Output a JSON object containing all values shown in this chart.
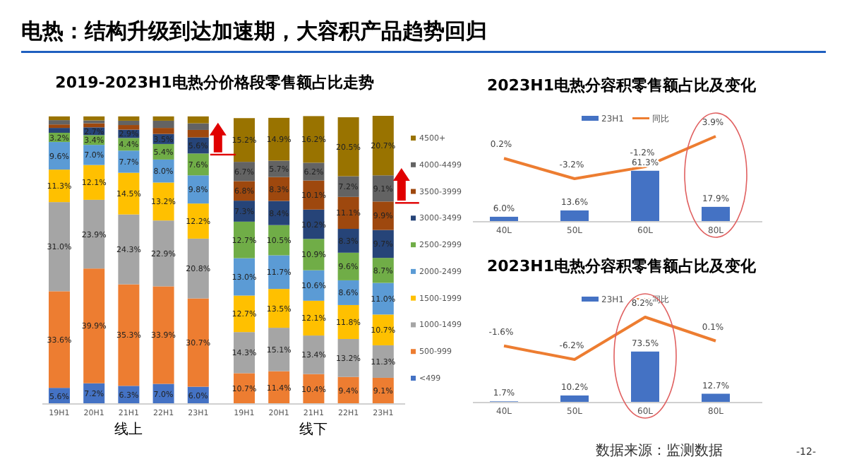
{
  "chart_data": [
    {
      "type": "bar",
      "stacked": true,
      "legend": "right",
      "title": "2019-2023H1电热分价格段零售额占比走势",
      "annotations": [
        "电热：结构升级到达加速期，大容积产品趋势回归",
        "线上",
        "线下"
      ],
      "categories": [
        "19H1",
        "20H1",
        "21H1",
        "22H1",
        "23H1",
        "19H1",
        "20H1",
        "21H1",
        "22H1",
        "23H1"
      ],
      "series": [
        {
          "name": "<499",
          "color": "#4472c4",
          "values": [
            5.6,
            7.2,
            6.3,
            7.0,
            6.0,
            null,
            null,
            null,
            null,
            null
          ],
          "value_labels": [
            "5.6%",
            "7.2%",
            "6.3%",
            "7.0%",
            "6.0%",
            null,
            null,
            null,
            null,
            null
          ]
        },
        {
          "name": "500-999",
          "color": "#ed7d31",
          "values": [
            33.6,
            39.9,
            35.3,
            33.9,
            30.7,
            10.7,
            11.4,
            10.4,
            9.4,
            9.1
          ],
          "value_labels": [
            "33.6%",
            "39.9%",
            "35.3%",
            "33.9%",
            "30.7%",
            "10.7%",
            "11.4%",
            "10.4%",
            "9.4%",
            "9.1%"
          ]
        },
        {
          "name": "1000-1499",
          "color": "#a5a5a5",
          "values": [
            31.0,
            23.9,
            24.3,
            22.9,
            20.8,
            14.3,
            15.1,
            13.4,
            13.2,
            11.3
          ],
          "value_labels": [
            "31.0%",
            "23.9%",
            "24.3%",
            "22.9%",
            "20.8%",
            "14.3%",
            "15.1%",
            "13.4%",
            "13.2%",
            "11.3%"
          ]
        },
        {
          "name": "1500-1999",
          "color": "#ffc000",
          "values": [
            11.3,
            12.1,
            14.5,
            13.2,
            12.2,
            12.7,
            13.5,
            12.1,
            11.8,
            10.7
          ],
          "value_labels": [
            "11.3%",
            "12.1%",
            "14.5%",
            "13.2%",
            "12.2%",
            "12.7%",
            "13.5%",
            "12.1%",
            "11.8%",
            "10.7%"
          ]
        },
        {
          "name": "2000-2499",
          "color": "#5b9bd5",
          "values": [
            9.6,
            7.0,
            7.7,
            8.0,
            9.8,
            13.0,
            11.7,
            10.6,
            8.6,
            11.0
          ],
          "value_labels": [
            "9.6%",
            "7.0%",
            "7.7%",
            "8.0%",
            "9.8%",
            "13.0%",
            "11.7%",
            "10.6%",
            "8.6%",
            "11.0%"
          ]
        },
        {
          "name": "2500-2999",
          "color": "#70ad47",
          "values": [
            3.2,
            3.4,
            4.4,
            5.4,
            7.6,
            12.7,
            10.5,
            10.9,
            9.6,
            8.7
          ],
          "value_labels": [
            "3.2%",
            "3.4%",
            "4.4%",
            "5.4%",
            "7.6%",
            "12.7%",
            "10.5%",
            "10.9%",
            "9.6%",
            "8.7%"
          ]
        },
        {
          "name": "3000-3499",
          "color": "#264478",
          "values": [
            1.7,
            2.7,
            2.9,
            3.5,
            5.6,
            7.3,
            8.4,
            10.2,
            8.3,
            9.7
          ],
          "value_labels": [
            null,
            "2.7%",
            "2.9%",
            "3.5%",
            "5.6%",
            "7.3%",
            "8.4%",
            "10.2%",
            "8.3%",
            "9.7%"
          ]
        },
        {
          "name": "3500-3999",
          "color": "#9e480e",
          "values": [
            1.2,
            1.4,
            1.6,
            2.1,
            2.6,
            6.8,
            8.3,
            10.1,
            11.1,
            9.9
          ],
          "value_labels": [
            null,
            null,
            null,
            null,
            null,
            "6.8%",
            "8.3%",
            "10.1%",
            "11.1%",
            "9.9%"
          ]
        },
        {
          "name": "4000-4499",
          "color": "#636363",
          "values": [
            1.5,
            1.0,
            1.5,
            2.5,
            2.3,
            6.7,
            5.7,
            6.2,
            7.2,
            9.1
          ],
          "value_labels": [
            null,
            null,
            null,
            null,
            null,
            "6.7%",
            "5.7%",
            "6.2%",
            "7.2%",
            "9.1%"
          ]
        },
        {
          "name": "4500+",
          "color": "#997300",
          "values": [
            1.3,
            1.4,
            1.5,
            1.5,
            2.4,
            15.2,
            14.9,
            16.2,
            20.5,
            20.7
          ],
          "value_labels": [
            null,
            null,
            null,
            null,
            null,
            "15.2%",
            "14.9%",
            "16.2%",
            "20.5%",
            "20.7%"
          ]
        }
      ]
    },
    {
      "type": "bar",
      "legend": "top",
      "title": "2023H1电热分容积零售额占比及变化",
      "categories": [
        "40L",
        "50L",
        "60L",
        "80L"
      ],
      "series": [
        {
          "name": "23H1",
          "color": "#4472c4",
          "values": [
            6.0,
            13.6,
            61.3,
            17.9
          ],
          "value_labels": [
            "6.0%",
            "13.6%",
            "61.3%",
            "17.9%"
          ]
        },
        {
          "name": "同比",
          "type": "line",
          "axis": "y2",
          "color": "#ed7d31",
          "values": [
            0.2,
            -3.2,
            -1.2,
            3.9
          ],
          "value_labels": [
            "0.2%",
            "-3.2%",
            "-1.2%",
            "3.9%"
          ]
        }
      ]
    },
    {
      "type": "bar",
      "legend": "top",
      "title": "2023H1电热分容积零售额占比及变化",
      "categories": [
        "40L",
        "50L",
        "60L",
        "80L"
      ],
      "annotations": [
        "数据来源：监测数据",
        "-12-"
      ],
      "series": [
        {
          "name": "23H1",
          "color": "#4472c4",
          "values": [
            1.7,
            10.2,
            73.5,
            12.7
          ],
          "value_labels": [
            "1.7%",
            "10.2%",
            "73.5%",
            "12.7%"
          ]
        },
        {
          "name": "同比",
          "type": "line",
          "axis": "y2",
          "color": "#ed7d31",
          "values": [
            -1.6,
            -6.2,
            8.2,
            0.1
          ],
          "value_labels": [
            "-1.6%",
            "-6.2%",
            "8.2%",
            "0.1%"
          ]
        }
      ]
    }
  ]
}
